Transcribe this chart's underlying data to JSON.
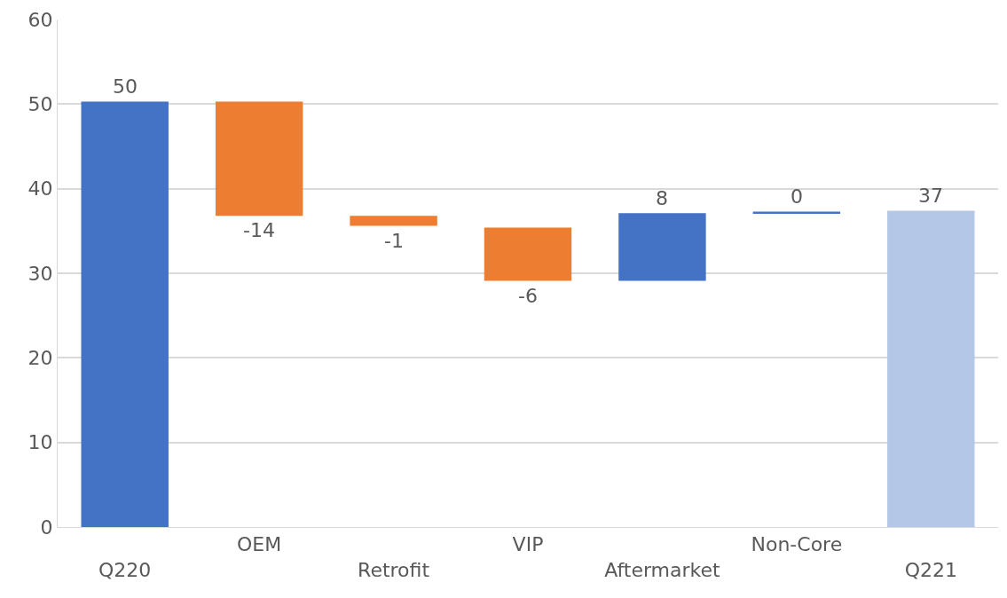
{
  "chart_data": {
    "type": "bar",
    "categories": [
      "Q220",
      "OEM",
      "Retrofit",
      "VIP",
      "Aftermarket",
      "Non-Core",
      "Q221"
    ],
    "values": [
      50.3,
      -13.5,
      -1.2,
      -6.3,
      8.0,
      0.2,
      37.4
    ],
    "base": [
      0,
      50.3,
      36.8,
      35.4,
      29.1,
      37.1,
      0
    ],
    "colors": [
      "#4472c4",
      "#ed7d31",
      "#ed7d31",
      "#ed7d31",
      "#4472c4",
      "#4472c4",
      "#b4c7e7"
    ],
    "value_labels": [
      "50",
      "-14",
      "-1",
      "-6",
      "8",
      "0",
      "37"
    ],
    "ylim": [
      0,
      60
    ],
    "yticks": [
      0,
      10,
      20,
      30,
      40,
      50,
      60
    ],
    "grid": "y",
    "legend": false
  }
}
